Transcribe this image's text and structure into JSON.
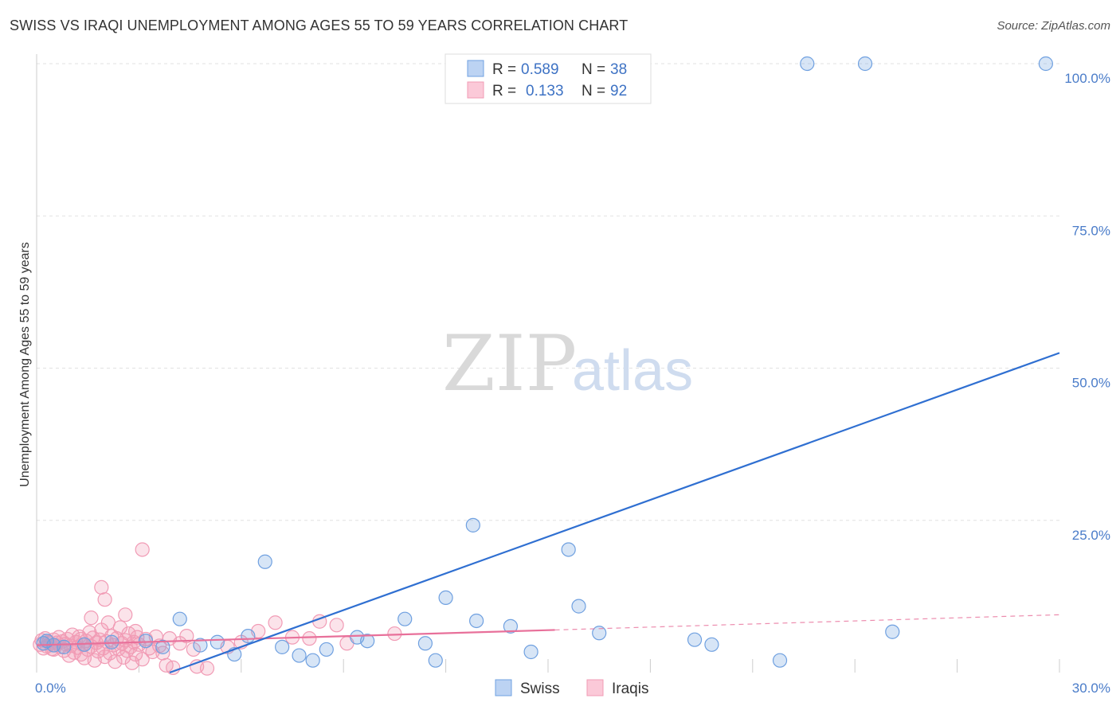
{
  "title": "SWISS VS IRAQI UNEMPLOYMENT AMONG AGES 55 TO 59 YEARS CORRELATION CHART",
  "source": "Source: ZipAtlas.com",
  "watermark": {
    "zip": "ZIP",
    "atlas": "atlas"
  },
  "legend": {
    "swiss": {
      "r_label": "R =",
      "r_value": "0.589",
      "n_label": "N =",
      "n_value": "38"
    },
    "iraqi": {
      "r_label": "R =",
      "r_value": "0.133",
      "n_label": "N =",
      "n_value": "92"
    }
  },
  "bottom_legend": {
    "swiss": "Swiss",
    "iraqi": "Iraqis"
  },
  "colors": {
    "swiss": "#6fa0e0",
    "swiss_line": "#2f6fd1",
    "iraqi": "#f19bb5",
    "iraqi_line": "#e8709a",
    "tick": "#4a7cc9"
  },
  "chart_data": {
    "type": "scatter",
    "title": "SWISS VS IRAQI UNEMPLOYMENT AMONG AGES 55 TO 59 YEARS CORRELATION CHART",
    "xlabel": "",
    "ylabel": "Unemployment Among Ages 55 to 59 years",
    "xlim": [
      0,
      30
    ],
    "ylim": [
      0,
      100
    ],
    "x_tick_labels": [
      "0.0%",
      "30.0%"
    ],
    "y_tick_labels": [
      "25.0%",
      "50.0%",
      "75.0%",
      "100.0%"
    ],
    "y_tick_values": [
      25,
      50,
      75,
      100
    ],
    "series": [
      {
        "name": "Swiss",
        "r": 0.589,
        "n": 38,
        "trend": {
          "x0": 3.9,
          "y0": 0,
          "x1": 30,
          "y1": 52.5
        },
        "points": [
          [
            0.2,
            4.8
          ],
          [
            0.3,
            5.2
          ],
          [
            0.5,
            4.5
          ],
          [
            0.8,
            4.2
          ],
          [
            1.4,
            4.6
          ],
          [
            2.2,
            5.0
          ],
          [
            3.2,
            5.2
          ],
          [
            3.7,
            4.2
          ],
          [
            4.2,
            8.8
          ],
          [
            4.8,
            4.5
          ],
          [
            5.3,
            5.0
          ],
          [
            5.8,
            3.0
          ],
          [
            6.2,
            6.0
          ],
          [
            7.2,
            4.2
          ],
          [
            7.7,
            2.8
          ],
          [
            8.1,
            2.0
          ],
          [
            8.5,
            3.8
          ],
          [
            6.7,
            18.2
          ],
          [
            9.4,
            5.8
          ],
          [
            9.7,
            5.2
          ],
          [
            10.8,
            8.8
          ],
          [
            11.4,
            4.8
          ],
          [
            11.7,
            2.0
          ],
          [
            12.0,
            12.3
          ],
          [
            12.9,
            8.5
          ],
          [
            12.8,
            24.2
          ],
          [
            13.9,
            7.6
          ],
          [
            14.5,
            3.4
          ],
          [
            15.6,
            20.2
          ],
          [
            15.9,
            10.9
          ],
          [
            16.5,
            6.5
          ],
          [
            19.3,
            5.4
          ],
          [
            19.8,
            4.6
          ],
          [
            21.8,
            2.0
          ],
          [
            25.1,
            6.7
          ],
          [
            22.6,
            100.0
          ],
          [
            24.3,
            100.0
          ],
          [
            29.6,
            100.0
          ]
        ]
      },
      {
        "name": "Iraqis",
        "r": 0.133,
        "n": 92,
        "trend": {
          "x0": 0,
          "y0": 4.5,
          "x1": 15.2,
          "y1": 7.0,
          "dash_x1": 30,
          "dash_y1": 9.5
        },
        "points": [
          [
            0.1,
            4.6
          ],
          [
            0.15,
            5.3
          ],
          [
            0.2,
            4.0
          ],
          [
            0.25,
            5.6
          ],
          [
            0.3,
            4.3
          ],
          [
            0.35,
            5.0
          ],
          [
            0.4,
            4.8
          ],
          [
            0.45,
            3.9
          ],
          [
            0.5,
            5.4
          ],
          [
            0.55,
            4.5
          ],
          [
            0.6,
            4.9
          ],
          [
            0.65,
            5.8
          ],
          [
            0.7,
            4.2
          ],
          [
            0.75,
            5.1
          ],
          [
            0.8,
            3.6
          ],
          [
            0.85,
            4.7
          ],
          [
            0.9,
            5.5
          ],
          [
            0.95,
            2.8
          ],
          [
            1.0,
            4.4
          ],
          [
            1.05,
            6.2
          ],
          [
            1.1,
            3.3
          ],
          [
            1.15,
            5.0
          ],
          [
            1.2,
            4.1
          ],
          [
            1.25,
            5.9
          ],
          [
            1.3,
            3.0
          ],
          [
            1.35,
            4.6
          ],
          [
            1.4,
            2.4
          ],
          [
            1.45,
            5.2
          ],
          [
            1.5,
            3.8
          ],
          [
            1.55,
            6.6
          ],
          [
            1.6,
            4.3
          ],
          [
            1.65,
            5.7
          ],
          [
            1.7,
            2.0
          ],
          [
            1.75,
            4.9
          ],
          [
            1.8,
            3.5
          ],
          [
            1.85,
            5.4
          ],
          [
            1.9,
            7.0
          ],
          [
            1.95,
            4.0
          ],
          [
            2.0,
            2.6
          ],
          [
            2.05,
            5.1
          ],
          [
            2.1,
            8.2
          ],
          [
            2.15,
            3.2
          ],
          [
            2.2,
            6.0
          ],
          [
            2.25,
            4.5
          ],
          [
            2.3,
            1.8
          ],
          [
            2.35,
            5.6
          ],
          [
            2.4,
            3.9
          ],
          [
            2.45,
            7.4
          ],
          [
            2.5,
            4.8
          ],
          [
            2.55,
            2.5
          ],
          [
            2.6,
            5.3
          ],
          [
            2.65,
            3.6
          ],
          [
            2.7,
            6.4
          ],
          [
            2.75,
            4.2
          ],
          [
            2.8,
            1.6
          ],
          [
            2.85,
            5.0
          ],
          [
            2.9,
            3.0
          ],
          [
            2.95,
            5.8
          ],
          [
            3.0,
            4.6
          ],
          [
            3.1,
            2.2
          ],
          [
            3.2,
            5.5
          ],
          [
            3.3,
            4.0
          ],
          [
            3.4,
            3.4
          ],
          [
            3.5,
            5.9
          ],
          [
            3.6,
            4.4
          ],
          [
            3.8,
            1.2
          ],
          [
            3.9,
            5.6
          ],
          [
            4.0,
            0.8
          ],
          [
            4.2,
            4.8
          ],
          [
            4.4,
            6.0
          ],
          [
            4.6,
            3.8
          ],
          [
            5.0,
            0.7
          ],
          [
            5.6,
            4.2
          ],
          [
            6.0,
            5.0
          ],
          [
            6.5,
            6.8
          ],
          [
            7.0,
            8.2
          ],
          [
            7.5,
            5.8
          ],
          [
            8.0,
            5.6
          ],
          [
            8.3,
            8.4
          ],
          [
            8.8,
            7.8
          ],
          [
            10.5,
            6.4
          ],
          [
            1.9,
            14.0
          ],
          [
            2.0,
            12.0
          ],
          [
            3.1,
            20.2
          ],
          [
            2.6,
            9.5
          ],
          [
            1.3,
            5.5
          ],
          [
            2.9,
            6.8
          ],
          [
            3.7,
            3.2
          ],
          [
            4.7,
            1.0
          ],
          [
            9.1,
            4.8
          ],
          [
            0.5,
            3.8
          ],
          [
            1.6,
            9.0
          ]
        ]
      }
    ]
  }
}
